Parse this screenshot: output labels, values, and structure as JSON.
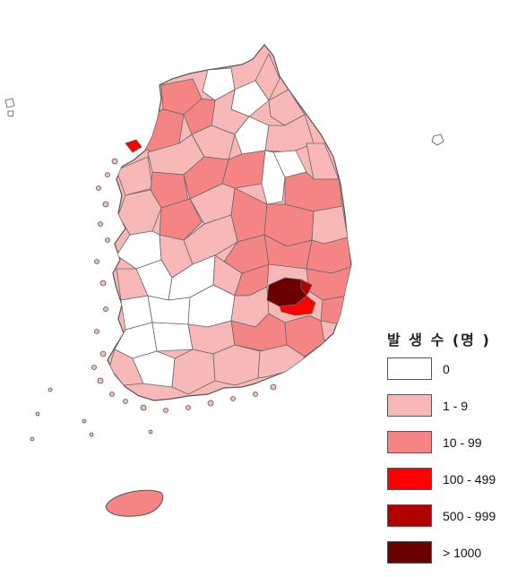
{
  "legend": {
    "title": "발 생 수 (명 )",
    "items": [
      {
        "label": "0",
        "color": "#ffffff"
      },
      {
        "label": "1 - 9",
        "color": "#f9b8b8"
      },
      {
        "label": "10 - 99",
        "color": "#f58585"
      },
      {
        "label": "100 - 499",
        "color": "#ff0000"
      },
      {
        "label": "500 - 999",
        "color": "#b00000"
      },
      {
        "label": "> 1000",
        "color": "#6a0000"
      }
    ]
  }
}
